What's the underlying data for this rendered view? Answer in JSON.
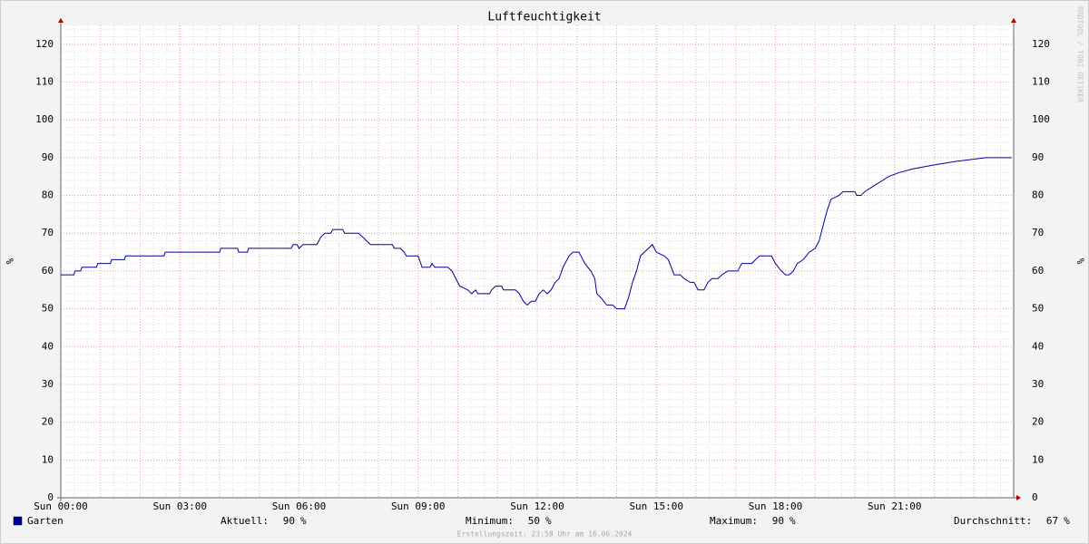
{
  "chart_data": {
    "type": "line",
    "title": "Luftfeuchtigkeit",
    "y_label": "%",
    "credit": "RRDTOOL / TOBI OETIKER",
    "footer": "Erstellungszeit: 23:58 Uhr am 16.06.2024",
    "grid": true,
    "xlim": [
      0,
      24
    ],
    "ylim": [
      0,
      125
    ],
    "xticks": [
      {
        "value": 0,
        "label": "Sun 00:00"
      },
      {
        "value": 3,
        "label": "Sun 03:00"
      },
      {
        "value": 6,
        "label": "Sun 06:00"
      },
      {
        "value": 9,
        "label": "Sun 09:00"
      },
      {
        "value": 12,
        "label": "Sun 12:00"
      },
      {
        "value": 15,
        "label": "Sun 15:00"
      },
      {
        "value": 18,
        "label": "Sun 18:00"
      },
      {
        "value": 21,
        "label": "Sun 21:00"
      }
    ],
    "yticks": [
      0,
      10,
      20,
      30,
      40,
      50,
      60,
      70,
      80,
      90,
      100,
      110,
      120
    ],
    "x": [
      0,
      0.33,
      0.36,
      0.5,
      0.53,
      0.9,
      0.93,
      1.25,
      1.28,
      1.6,
      1.63,
      2.6,
      2.63,
      4.0,
      4.03,
      4.45,
      4.48,
      4.7,
      4.73,
      5.8,
      5.85,
      5.95,
      6.0,
      6.1,
      6.45,
      6.55,
      6.65,
      6.8,
      6.85,
      7.1,
      7.15,
      7.5,
      7.6,
      7.7,
      7.8,
      8.35,
      8.4,
      8.55,
      8.65,
      8.7,
      9.0,
      9.1,
      9.3,
      9.35,
      9.42,
      9.75,
      9.85,
      9.95,
      10.05,
      10.25,
      10.35,
      10.45,
      10.5,
      10.8,
      10.85,
      10.95,
      11.1,
      11.15,
      11.45,
      11.55,
      11.65,
      11.75,
      11.85,
      11.95,
      12.05,
      12.15,
      12.25,
      12.35,
      12.45,
      12.55,
      12.65,
      12.8,
      12.9,
      13.05,
      13.2,
      13.35,
      13.45,
      13.5,
      13.6,
      13.75,
      13.9,
      14.0,
      14.2,
      14.3,
      14.4,
      14.5,
      14.6,
      14.7,
      14.8,
      14.9,
      15.0,
      15.2,
      15.3,
      15.45,
      15.6,
      15.7,
      15.85,
      15.95,
      16.05,
      16.2,
      16.3,
      16.4,
      16.55,
      16.65,
      16.8,
      17.05,
      17.15,
      17.4,
      17.5,
      17.6,
      17.9,
      18.0,
      18.15,
      18.25,
      18.35,
      18.45,
      18.55,
      18.7,
      18.85,
      19.0,
      19.1,
      19.2,
      19.3,
      19.4,
      19.6,
      19.7,
      20.0,
      20.05,
      20.15,
      20.25,
      20.4,
      20.55,
      20.7,
      20.85,
      21.1,
      21.45,
      21.95,
      22.55,
      23.3,
      23.95
    ],
    "series": [
      {
        "name": "Garten",
        "color": "#00009c",
        "values": [
          59,
          59,
          60,
          60,
          61,
          61,
          62,
          62,
          63,
          63,
          64,
          64,
          65,
          65,
          66,
          66,
          65,
          65,
          66,
          66,
          67,
          67,
          66,
          67,
          67,
          69,
          70,
          70,
          71,
          71,
          70,
          70,
          69,
          68,
          67,
          67,
          66,
          66,
          65,
          64,
          64,
          61,
          61,
          62,
          61,
          61,
          60,
          58,
          56,
          55,
          54,
          55,
          54,
          54,
          55,
          56,
          56,
          55,
          55,
          54,
          52,
          51,
          52,
          52,
          54,
          55,
          54,
          55,
          57,
          58,
          61,
          64,
          65,
          65,
          62,
          60,
          58,
          54,
          53,
          51,
          51,
          50,
          50,
          53,
          57,
          60,
          64,
          65,
          66,
          67,
          65,
          64,
          63,
          59,
          59,
          58,
          57,
          57,
          55,
          55,
          57,
          58,
          58,
          59,
          60,
          60,
          62,
          62,
          63,
          64,
          64,
          62,
          60,
          59,
          59,
          60,
          62,
          63,
          65,
          66,
          68,
          72,
          76,
          79,
          80,
          81,
          81,
          80,
          80,
          81,
          82,
          83,
          84,
          85,
          86,
          87,
          88,
          89,
          90,
          90
        ]
      }
    ],
    "stats": [
      {
        "label": "Aktuell:",
        "value": 90,
        "unit": "%"
      },
      {
        "label": "Minimum:",
        "value": 50,
        "unit": "%"
      },
      {
        "label": "Maximum:",
        "value": 90,
        "unit": "%"
      },
      {
        "label": "Durchschnitt:",
        "value": 67,
        "unit": "%"
      }
    ]
  }
}
